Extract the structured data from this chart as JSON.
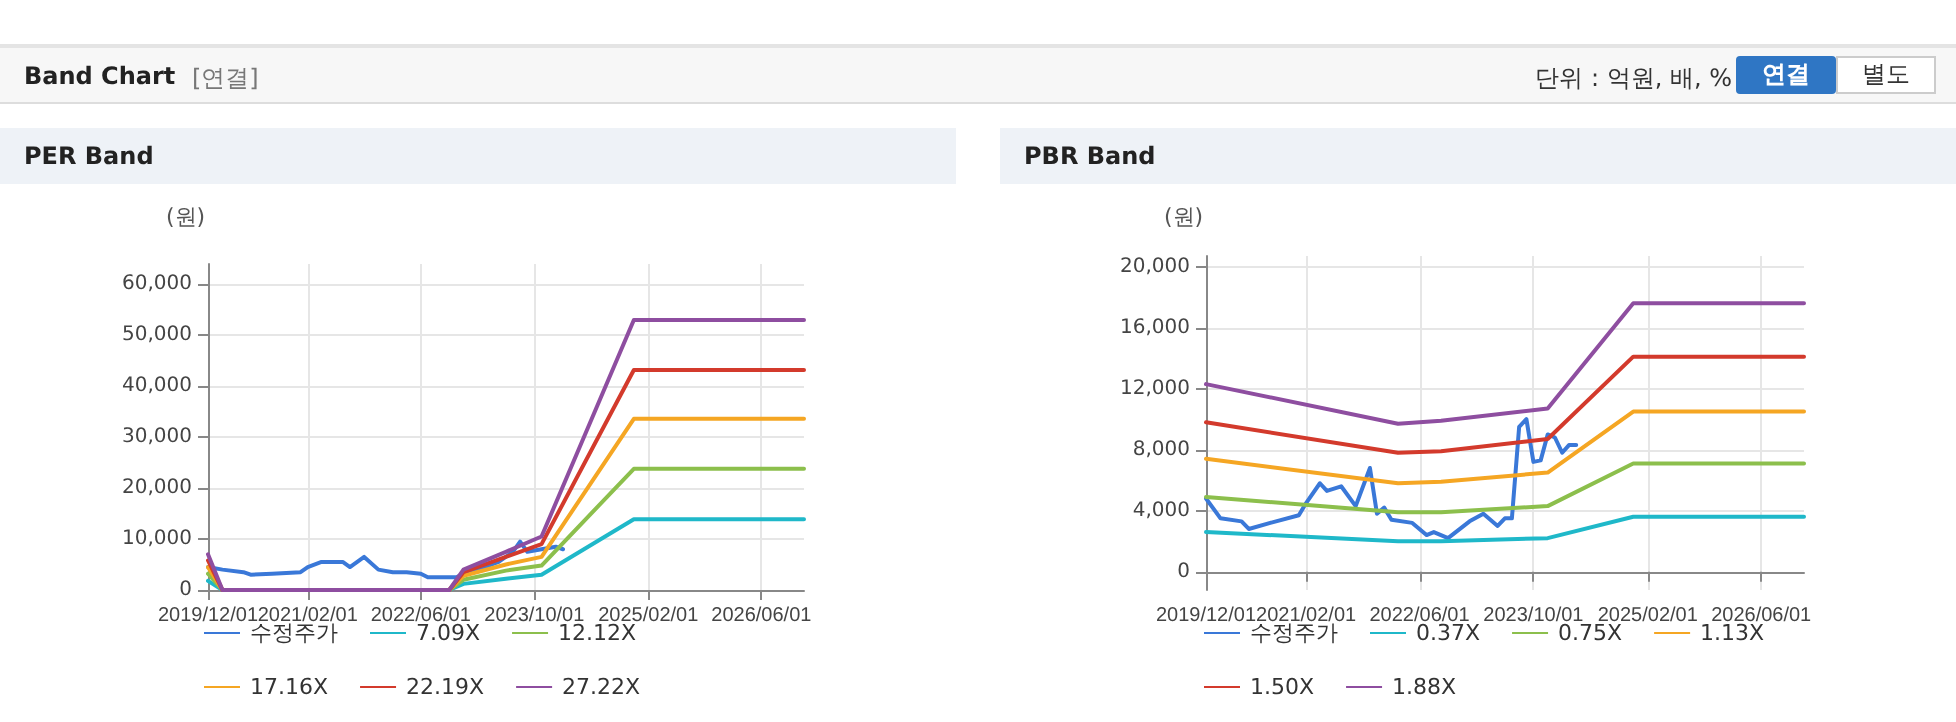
{
  "chart_data": [
    {
      "type": "line",
      "title": "PER Band",
      "ylabel": "(원)",
      "annotations": [
        "Band Chart",
        "[연결]",
        "단위 : 억원, 배, %",
        "연결",
        "별도"
      ],
      "xlim": [
        "2019-12-01",
        "2026-12-01"
      ],
      "xticks": [
        {
          "value": "2019-12-01",
          "label": "2019/12/01"
        },
        {
          "value": "2021-02-01",
          "label": "2021/02/01"
        },
        {
          "value": "2022-06-01",
          "label": "2022/06/01"
        },
        {
          "value": "2023-10-01",
          "label": "2023/10/01"
        },
        {
          "value": "2025-02-01",
          "label": "2025/02/01"
        },
        {
          "value": "2026-06-01",
          "label": "2026/06/01"
        }
      ],
      "ylim": [
        0,
        64000
      ],
      "yticks": [
        {
          "value": 0,
          "label": "0"
        },
        {
          "value": 10000,
          "label": "10,000"
        },
        {
          "value": 20000,
          "label": "20,000"
        },
        {
          "value": 30000,
          "label": "30,000"
        },
        {
          "value": 40000,
          "label": "40,000"
        },
        {
          "value": 50000,
          "label": "50,000"
        },
        {
          "value": 60000,
          "label": "60,000"
        }
      ],
      "grid": true,
      "legend": "bottom",
      "marker": "none",
      "line_style": "solid",
      "series": [
        {
          "name": "수정주가",
          "color": "#3a78d8",
          "x": [
            "2019-12-01",
            "2020-02-01",
            "2020-05-01",
            "2020-06-01",
            "2020-09-01",
            "2021-01-01",
            "2021-02-01",
            "2021-04-01",
            "2021-07-01",
            "2021-08-01",
            "2021-10-01",
            "2021-12-01",
            "2022-02-01",
            "2022-04-01",
            "2022-06-01",
            "2022-07-01",
            "2022-11-01",
            "2022-12-01",
            "2023-03-01",
            "2023-05-01",
            "2023-07-01",
            "2023-08-01",
            "2023-09-01",
            "2023-11-01",
            "2024-01-01",
            "2024-02-01"
          ],
          "values": [
            4500,
            4000,
            3500,
            3000,
            3200,
            3500,
            4500,
            5500,
            5500,
            4500,
            6500,
            4000,
            3500,
            3500,
            3200,
            2500,
            2500,
            3200,
            4500,
            5500,
            7500,
            9500,
            7500,
            8000,
            8500,
            8000
          ]
        },
        {
          "name": "7.09X",
          "color": "#1fb8c9",
          "x": [
            "2019-12-01",
            "2020-02-01",
            "2022-10-01",
            "2022-12-01",
            "2023-06-01",
            "2023-11-01",
            "2024-12-01",
            "2026-12-01"
          ],
          "values": [
            1800,
            0,
            0,
            1200,
            2200,
            3000,
            13900,
            13900
          ]
        },
        {
          "name": "12.12X",
          "color": "#8cbf4c",
          "x": [
            "2019-12-01",
            "2020-02-01",
            "2022-10-01",
            "2022-12-01",
            "2023-06-01",
            "2023-11-01",
            "2024-12-01",
            "2026-12-01"
          ],
          "values": [
            3200,
            0,
            0,
            2000,
            3800,
            4800,
            23800,
            23800
          ]
        },
        {
          "name": "17.16X",
          "color": "#f5a623",
          "x": [
            "2019-12-01",
            "2020-02-01",
            "2022-10-01",
            "2022-12-01",
            "2023-06-01",
            "2023-11-01",
            "2024-12-01",
            "2026-12-01"
          ],
          "values": [
            4500,
            0,
            0,
            2800,
            5000,
            6500,
            33600,
            33600
          ]
        },
        {
          "name": "22.19X",
          "color": "#d33a2c",
          "x": [
            "2019-12-01",
            "2020-02-01",
            "2022-10-01",
            "2022-12-01",
            "2023-06-01",
            "2023-11-01",
            "2024-12-01",
            "2026-12-01"
          ],
          "values": [
            5800,
            0,
            0,
            3500,
            6500,
            9000,
            43200,
            43200
          ]
        },
        {
          "name": "27.22X",
          "color": "#8e4ea0",
          "x": [
            "2019-12-01",
            "2020-02-01",
            "2022-10-01",
            "2022-12-01",
            "2023-06-01",
            "2023-11-01",
            "2024-12-01",
            "2026-12-01"
          ],
          "values": [
            7000,
            0,
            0,
            4000,
            7500,
            10500,
            53000,
            53000
          ]
        }
      ]
    },
    {
      "type": "line",
      "title": "PBR Band",
      "ylabel": "(원)",
      "xlim": [
        "2019-12-01",
        "2026-12-01"
      ],
      "xticks": [
        {
          "value": "2019-12-01",
          "label": "2019/12/01"
        },
        {
          "value": "2021-02-01",
          "label": "2021/02/01"
        },
        {
          "value": "2022-06-01",
          "label": "2022/06/01"
        },
        {
          "value": "2023-10-01",
          "label": "2023/10/01"
        },
        {
          "value": "2025-02-01",
          "label": "2025/02/01"
        },
        {
          "value": "2026-06-01",
          "label": "2026/06/01"
        }
      ],
      "ylim": [
        -1200,
        20700
      ],
      "yticks": [
        {
          "value": 0,
          "label": "0"
        },
        {
          "value": 4000,
          "label": "4,000"
        },
        {
          "value": 8000,
          "label": "8,000"
        },
        {
          "value": 12000,
          "label": "12,000"
        },
        {
          "value": 16000,
          "label": "16,000"
        },
        {
          "value": 20000,
          "label": "20,000"
        }
      ],
      "grid": true,
      "legend": "bottom",
      "marker": "none",
      "line_style": "solid",
      "series": [
        {
          "name": "수정주가",
          "color": "#3a78d8",
          "x": [
            "2019-12-01",
            "2020-02-01",
            "2020-05-01",
            "2020-06-01",
            "2020-09-01",
            "2021-01-01",
            "2021-02-01",
            "2021-04-01",
            "2021-05-01",
            "2021-07-01",
            "2021-09-01",
            "2021-11-01",
            "2021-12-01",
            "2022-01-01",
            "2022-02-01",
            "2022-05-01",
            "2022-07-01",
            "2022-08-01",
            "2022-10-01",
            "2023-01-01",
            "2023-03-01",
            "2023-05-01",
            "2023-06-01",
            "2023-07-01",
            "2023-08-01",
            "2023-09-01",
            "2023-10-01",
            "2023-11-01",
            "2023-12-01",
            "2024-01-01",
            "2024-02-01",
            "2024-03-01",
            "2024-04-01"
          ],
          "values": [
            4800,
            3500,
            3300,
            2800,
            3200,
            3700,
            4500,
            5800,
            5300,
            5600,
            4300,
            6800,
            3800,
            4200,
            3400,
            3200,
            2400,
            2600,
            2200,
            3300,
            3800,
            3000,
            3500,
            3500,
            9500,
            10000,
            7200,
            7300,
            9000,
            8800,
            7800,
            8300,
            8300
          ]
        },
        {
          "name": "0.37X",
          "color": "#1fb8c9",
          "x": [
            "2019-12-01",
            "2022-03-01",
            "2022-09-01",
            "2023-12-01",
            "2024-12-01",
            "2026-12-01"
          ],
          "values": [
            2600,
            2000,
            2000,
            2200,
            3600,
            3600
          ]
        },
        {
          "name": "0.75X",
          "color": "#8cbf4c",
          "x": [
            "2019-12-01",
            "2022-03-01",
            "2022-09-01",
            "2023-12-01",
            "2024-12-01",
            "2026-12-01"
          ],
          "values": [
            4900,
            3900,
            3900,
            4300,
            7100,
            7100
          ]
        },
        {
          "name": "1.13X",
          "color": "#f5a623",
          "x": [
            "2019-12-01",
            "2022-03-01",
            "2022-09-01",
            "2023-12-01",
            "2024-12-01",
            "2026-12-01"
          ],
          "values": [
            7400,
            5800,
            5900,
            6500,
            10500,
            10500
          ]
        },
        {
          "name": "1.50X",
          "color": "#d33a2c",
          "x": [
            "2019-12-01",
            "2022-03-01",
            "2022-09-01",
            "2023-12-01",
            "2024-12-01",
            "2026-12-01"
          ],
          "values": [
            9800,
            7800,
            7900,
            8700,
            14100,
            14100
          ]
        },
        {
          "name": "1.88X",
          "color": "#8e4ea0",
          "x": [
            "2019-12-01",
            "2022-03-01",
            "2022-09-01",
            "2023-12-01",
            "2024-12-01",
            "2026-12-01"
          ],
          "values": [
            12300,
            9700,
            9900,
            10700,
            17600,
            17600
          ]
        }
      ]
    }
  ]
}
